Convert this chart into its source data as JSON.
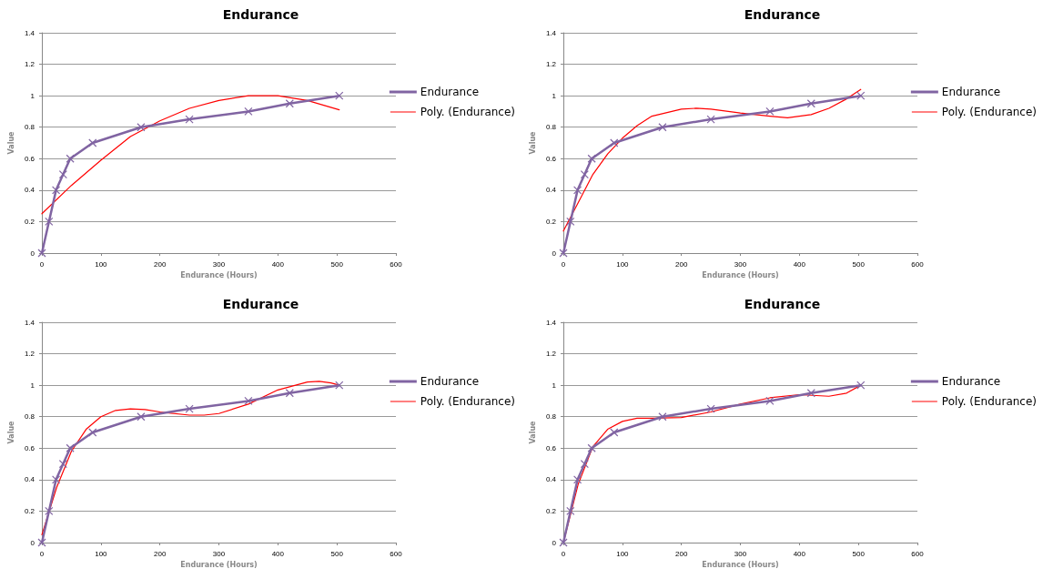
{
  "chart_data": [
    {
      "type": "line",
      "title": "Endurance",
      "xlabel": "Endurance (Hours)",
      "ylabel": "Value",
      "xlim": [
        0,
        600
      ],
      "xticks": [
        0,
        100,
        200,
        300,
        400,
        500,
        600
      ],
      "ylim": [
        0,
        1.4
      ],
      "yticks": [
        0,
        0.2,
        0.4,
        0.6,
        0.8,
        1,
        1.2,
        1.4
      ],
      "grid": "y",
      "legend": "right",
      "series": [
        {
          "name": "Endurance",
          "color": "#8064a2",
          "marker": "cross",
          "x": [
            0,
            12,
            24,
            36,
            48,
            86,
            168,
            250,
            350,
            420,
            504
          ],
          "values": [
            0,
            0.2,
            0.4,
            0.5,
            0.6,
            0.7,
            0.8,
            0.85,
            0.9,
            0.95,
            1
          ]
        },
        {
          "name": "Poly. (Endurance)",
          "color": "#ff0000",
          "marker": "none",
          "x": [
            0,
            50,
            100,
            150,
            200,
            250,
            300,
            350,
            400,
            450,
            504
          ],
          "values": [
            0.25,
            0.43,
            0.59,
            0.74,
            0.84,
            0.92,
            0.97,
            1.0,
            1.0,
            0.97,
            0.91
          ]
        }
      ]
    },
    {
      "type": "line",
      "title": "Endurance",
      "xlabel": "Endurance (Hours)",
      "ylabel": "Value",
      "xlim": [
        0,
        600
      ],
      "xticks": [
        0,
        100,
        200,
        300,
        400,
        500,
        600
      ],
      "ylim": [
        0,
        1.4
      ],
      "yticks": [
        0,
        0.2,
        0.4,
        0.6,
        0.8,
        1,
        1.2,
        1.4
      ],
      "grid": "y",
      "legend": "right",
      "series": [
        {
          "name": "Endurance",
          "color": "#8064a2",
          "marker": "cross",
          "x": [
            0,
            12,
            24,
            36,
            48,
            86,
            168,
            250,
            350,
            420,
            504
          ],
          "values": [
            0,
            0.2,
            0.4,
            0.5,
            0.6,
            0.7,
            0.8,
            0.85,
            0.9,
            0.95,
            1
          ]
        },
        {
          "name": "Poly. (Endurance)",
          "color": "#ff0000",
          "marker": "none",
          "x": [
            0,
            25,
            50,
            75,
            100,
            125,
            150,
            200,
            225,
            250,
            300,
            350,
            380,
            420,
            450,
            480,
            504
          ],
          "values": [
            0.14,
            0.32,
            0.5,
            0.63,
            0.73,
            0.81,
            0.87,
            0.915,
            0.92,
            0.915,
            0.89,
            0.87,
            0.86,
            0.88,
            0.92,
            0.98,
            1.04
          ]
        }
      ]
    },
    {
      "type": "line",
      "title": "Endurance",
      "xlabel": "Endurance (Hours)",
      "ylabel": "Value",
      "xlim": [
        0,
        600
      ],
      "xticks": [
        0,
        100,
        200,
        300,
        400,
        500,
        600
      ],
      "ylim": [
        0,
        1.4
      ],
      "yticks": [
        0,
        0.2,
        0.4,
        0.6,
        0.8,
        1,
        1.2,
        1.4
      ],
      "grid": "y",
      "legend": "right",
      "series": [
        {
          "name": "Endurance",
          "color": "#8064a2",
          "marker": "cross",
          "x": [
            0,
            12,
            24,
            36,
            48,
            86,
            168,
            250,
            350,
            420,
            504
          ],
          "values": [
            0,
            0.2,
            0.4,
            0.5,
            0.6,
            0.7,
            0.8,
            0.85,
            0.9,
            0.95,
            1
          ]
        },
        {
          "name": "Poly. (Endurance)",
          "color": "#ff0000",
          "marker": "none",
          "x": [
            0,
            25,
            50,
            75,
            100,
            125,
            150,
            175,
            200,
            250,
            275,
            300,
            350,
            400,
            450,
            470,
            490,
            504
          ],
          "values": [
            0.05,
            0.35,
            0.58,
            0.72,
            0.8,
            0.84,
            0.85,
            0.845,
            0.83,
            0.81,
            0.81,
            0.82,
            0.88,
            0.97,
            1.02,
            1.025,
            1.015,
            1.0
          ]
        }
      ]
    },
    {
      "type": "line",
      "title": "Endurance",
      "xlabel": "Endurance (Hours)",
      "ylabel": "Value",
      "xlim": [
        0,
        600
      ],
      "xticks": [
        0,
        100,
        200,
        300,
        400,
        500,
        600
      ],
      "ylim": [
        0,
        1.4
      ],
      "yticks": [
        0,
        0.2,
        0.4,
        0.6,
        0.8,
        1,
        1.2,
        1.4
      ],
      "grid": "y",
      "legend": "right",
      "series": [
        {
          "name": "Endurance",
          "color": "#8064a2",
          "marker": "cross",
          "x": [
            0,
            12,
            24,
            36,
            48,
            86,
            168,
            250,
            350,
            420,
            504
          ],
          "values": [
            0,
            0.2,
            0.4,
            0.5,
            0.6,
            0.7,
            0.8,
            0.85,
            0.9,
            0.95,
            1
          ]
        },
        {
          "name": "Poly. (Endurance)",
          "color": "#ff0000",
          "marker": "none",
          "x": [
            0,
            25,
            50,
            75,
            100,
            125,
            150,
            200,
            250,
            300,
            350,
            400,
            450,
            480,
            504
          ],
          "values": [
            0.0,
            0.37,
            0.61,
            0.72,
            0.77,
            0.79,
            0.79,
            0.795,
            0.83,
            0.88,
            0.92,
            0.94,
            0.93,
            0.95,
            1.0
          ]
        }
      ]
    }
  ]
}
